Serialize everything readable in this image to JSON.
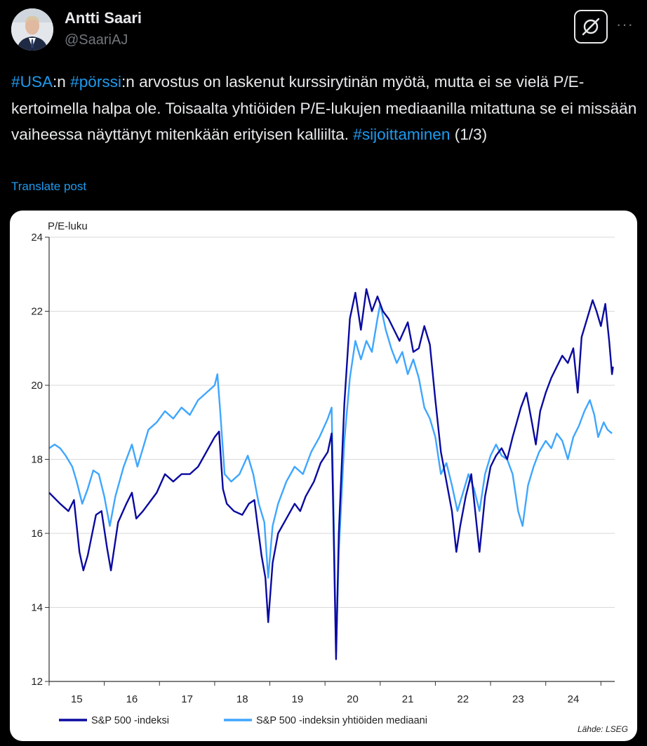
{
  "author": {
    "display_name": "Antti Saari",
    "handle": "@SaariAJ"
  },
  "header_actions": {
    "grok_icon": "grok-icon",
    "more_icon": "more-horizontal-icon",
    "more_label": "···"
  },
  "post": {
    "segments": [
      {
        "text": "#USA",
        "hashtag": true
      },
      {
        "text": ":n ",
        "hashtag": false
      },
      {
        "text": "#pörssi",
        "hashtag": true
      },
      {
        "text": ":n arvostus on laskenut kurssirytinän myötä, mutta ei se vielä P/E-kertoimella halpa ole. Toisaalta yhtiöiden P/E-lukujen mediaanilla mitattuna se ei missään vaiheessa näyttänyt mitenkään erityisen kalliilta. ",
        "hashtag": false
      },
      {
        "text": "#sijoittaminen",
        "hashtag": true
      },
      {
        "text": " (1/3)",
        "hashtag": false
      }
    ],
    "translate_label": "Translate post"
  },
  "colors": {
    "background": "#000000",
    "text": "#e7e9ea",
    "muted": "#71767b",
    "link": "#1d9bf0",
    "series_index": "#0a0aa0",
    "series_median": "#3ea6ff"
  },
  "chart_data": {
    "type": "line",
    "ylabel": "P/E-luku",
    "ylim": [
      12,
      24
    ],
    "yticks": [
      12,
      14,
      16,
      18,
      20,
      22,
      24
    ],
    "grid": true,
    "xlim": [
      2015.0,
      2025.25
    ],
    "xticks": [
      {
        "label": "15",
        "year": 2015
      },
      {
        "label": "16",
        "year": 2016
      },
      {
        "label": "17",
        "year": 2017
      },
      {
        "label": "18",
        "year": 2018
      },
      {
        "label": "19",
        "year": 2019
      },
      {
        "label": "20",
        "year": 2020
      },
      {
        "label": "21",
        "year": 2021
      },
      {
        "label": "22",
        "year": 2022
      },
      {
        "label": "23",
        "year": 2023
      },
      {
        "label": "24",
        "year": 2024
      }
    ],
    "legend_position": "bottom",
    "source": "Lähde: LSEG",
    "series": [
      {
        "name": "S&P 500 -indeksi",
        "color": "#0a0aa0",
        "points": [
          [
            2015.0,
            17.1
          ],
          [
            2015.2,
            16.8
          ],
          [
            2015.35,
            16.6
          ],
          [
            2015.45,
            16.9
          ],
          [
            2015.55,
            15.5
          ],
          [
            2015.62,
            15.0
          ],
          [
            2015.7,
            15.4
          ],
          [
            2015.85,
            16.5
          ],
          [
            2015.95,
            16.6
          ],
          [
            2016.05,
            15.6
          ],
          [
            2016.12,
            15.0
          ],
          [
            2016.25,
            16.3
          ],
          [
            2016.4,
            16.8
          ],
          [
            2016.5,
            17.1
          ],
          [
            2016.58,
            16.4
          ],
          [
            2016.7,
            16.6
          ],
          [
            2016.85,
            16.9
          ],
          [
            2016.95,
            17.1
          ],
          [
            2017.1,
            17.6
          ],
          [
            2017.25,
            17.4
          ],
          [
            2017.4,
            17.6
          ],
          [
            2017.55,
            17.6
          ],
          [
            2017.7,
            17.8
          ],
          [
            2017.85,
            18.2
          ],
          [
            2018.0,
            18.6
          ],
          [
            2018.08,
            18.75
          ],
          [
            2018.15,
            17.2
          ],
          [
            2018.22,
            16.8
          ],
          [
            2018.35,
            16.6
          ],
          [
            2018.5,
            16.5
          ],
          [
            2018.62,
            16.8
          ],
          [
            2018.72,
            16.9
          ],
          [
            2018.78,
            16.2
          ],
          [
            2018.85,
            15.4
          ],
          [
            2018.92,
            14.8
          ],
          [
            2018.97,
            13.6
          ],
          [
            2019.05,
            15.2
          ],
          [
            2019.15,
            16.0
          ],
          [
            2019.3,
            16.4
          ],
          [
            2019.45,
            16.8
          ],
          [
            2019.55,
            16.6
          ],
          [
            2019.65,
            17.0
          ],
          [
            2019.8,
            17.4
          ],
          [
            2019.92,
            17.9
          ],
          [
            2020.05,
            18.2
          ],
          [
            2020.12,
            18.7
          ],
          [
            2020.15,
            16.5
          ],
          [
            2020.2,
            12.6
          ],
          [
            2020.25,
            16.0
          ],
          [
            2020.35,
            19.5
          ],
          [
            2020.45,
            21.8
          ],
          [
            2020.55,
            22.5
          ],
          [
            2020.65,
            21.5
          ],
          [
            2020.75,
            22.6
          ],
          [
            2020.85,
            22.0
          ],
          [
            2020.95,
            22.4
          ],
          [
            2021.05,
            22.0
          ],
          [
            2021.15,
            21.8
          ],
          [
            2021.25,
            21.5
          ],
          [
            2021.35,
            21.2
          ],
          [
            2021.5,
            21.7
          ],
          [
            2021.6,
            20.9
          ],
          [
            2021.7,
            21.0
          ],
          [
            2021.8,
            21.6
          ],
          [
            2021.9,
            21.1
          ],
          [
            2022.0,
            19.6
          ],
          [
            2022.1,
            18.2
          ],
          [
            2022.2,
            17.4
          ],
          [
            2022.3,
            16.6
          ],
          [
            2022.38,
            15.5
          ],
          [
            2022.45,
            16.2
          ],
          [
            2022.55,
            17.0
          ],
          [
            2022.65,
            17.6
          ],
          [
            2022.75,
            16.2
          ],
          [
            2022.8,
            15.5
          ],
          [
            2022.9,
            17.0
          ],
          [
            2023.0,
            17.8
          ],
          [
            2023.1,
            18.1
          ],
          [
            2023.2,
            18.3
          ],
          [
            2023.3,
            18.0
          ],
          [
            2023.4,
            18.6
          ],
          [
            2023.55,
            19.4
          ],
          [
            2023.65,
            19.8
          ],
          [
            2023.75,
            19.0
          ],
          [
            2023.82,
            18.4
          ],
          [
            2023.9,
            19.3
          ],
          [
            2024.0,
            19.8
          ],
          [
            2024.1,
            20.2
          ],
          [
            2024.2,
            20.5
          ],
          [
            2024.3,
            20.8
          ],
          [
            2024.4,
            20.6
          ],
          [
            2024.5,
            21.0
          ],
          [
            2024.58,
            19.8
          ],
          [
            2024.65,
            21.3
          ],
          [
            2024.75,
            21.8
          ],
          [
            2024.85,
            22.3
          ],
          [
            2024.92,
            22.0
          ],
          [
            2025.0,
            21.6
          ],
          [
            2025.08,
            22.2
          ],
          [
            2025.15,
            21.2
          ],
          [
            2025.2,
            20.3
          ],
          [
            2025.22,
            20.5
          ]
        ]
      },
      {
        "name": "S&P 500 -indeksin yhtiöiden mediaani",
        "color": "#3ea6ff",
        "points": [
          [
            2015.0,
            18.3
          ],
          [
            2015.1,
            18.4
          ],
          [
            2015.2,
            18.3
          ],
          [
            2015.3,
            18.1
          ],
          [
            2015.42,
            17.8
          ],
          [
            2015.5,
            17.4
          ],
          [
            2015.6,
            16.8
          ],
          [
            2015.7,
            17.2
          ],
          [
            2015.8,
            17.7
          ],
          [
            2015.9,
            17.6
          ],
          [
            2016.0,
            17.0
          ],
          [
            2016.1,
            16.2
          ],
          [
            2016.2,
            17.0
          ],
          [
            2016.35,
            17.8
          ],
          [
            2016.5,
            18.4
          ],
          [
            2016.6,
            17.8
          ],
          [
            2016.7,
            18.3
          ],
          [
            2016.8,
            18.8
          ],
          [
            2016.95,
            19.0
          ],
          [
            2017.1,
            19.3
          ],
          [
            2017.25,
            19.1
          ],
          [
            2017.4,
            19.4
          ],
          [
            2017.55,
            19.2
          ],
          [
            2017.7,
            19.6
          ],
          [
            2017.85,
            19.8
          ],
          [
            2018.0,
            20.0
          ],
          [
            2018.05,
            20.3
          ],
          [
            2018.1,
            19.3
          ],
          [
            2018.18,
            17.6
          ],
          [
            2018.3,
            17.4
          ],
          [
            2018.45,
            17.6
          ],
          [
            2018.6,
            18.1
          ],
          [
            2018.7,
            17.6
          ],
          [
            2018.8,
            16.8
          ],
          [
            2018.9,
            16.3
          ],
          [
            2018.97,
            14.8
          ],
          [
            2019.05,
            16.2
          ],
          [
            2019.15,
            16.8
          ],
          [
            2019.3,
            17.4
          ],
          [
            2019.45,
            17.8
          ],
          [
            2019.6,
            17.6
          ],
          [
            2019.75,
            18.2
          ],
          [
            2019.9,
            18.6
          ],
          [
            2020.05,
            19.1
          ],
          [
            2020.12,
            19.4
          ],
          [
            2020.15,
            17.0
          ],
          [
            2020.2,
            12.8
          ],
          [
            2020.25,
            15.5
          ],
          [
            2020.35,
            18.5
          ],
          [
            2020.45,
            20.2
          ],
          [
            2020.55,
            21.2
          ],
          [
            2020.65,
            20.7
          ],
          [
            2020.75,
            21.2
          ],
          [
            2020.85,
            20.9
          ],
          [
            2020.95,
            21.8
          ],
          [
            2021.0,
            22.2
          ],
          [
            2021.1,
            21.5
          ],
          [
            2021.2,
            21.0
          ],
          [
            2021.3,
            20.6
          ],
          [
            2021.4,
            20.9
          ],
          [
            2021.5,
            20.3
          ],
          [
            2021.6,
            20.7
          ],
          [
            2021.7,
            20.2
          ],
          [
            2021.8,
            19.4
          ],
          [
            2021.9,
            19.1
          ],
          [
            2022.0,
            18.6
          ],
          [
            2022.1,
            17.6
          ],
          [
            2022.2,
            17.9
          ],
          [
            2022.3,
            17.3
          ],
          [
            2022.4,
            16.6
          ],
          [
            2022.5,
            17.1
          ],
          [
            2022.6,
            17.6
          ],
          [
            2022.7,
            17.2
          ],
          [
            2022.8,
            16.6
          ],
          [
            2022.9,
            17.6
          ],
          [
            2023.0,
            18.1
          ],
          [
            2023.1,
            18.4
          ],
          [
            2023.2,
            18.1
          ],
          [
            2023.3,
            18.0
          ],
          [
            2023.4,
            17.6
          ],
          [
            2023.5,
            16.6
          ],
          [
            2023.58,
            16.2
          ],
          [
            2023.68,
            17.3
          ],
          [
            2023.78,
            17.8
          ],
          [
            2023.88,
            18.2
          ],
          [
            2024.0,
            18.5
          ],
          [
            2024.1,
            18.3
          ],
          [
            2024.2,
            18.7
          ],
          [
            2024.3,
            18.5
          ],
          [
            2024.4,
            18.0
          ],
          [
            2024.5,
            18.6
          ],
          [
            2024.6,
            18.9
          ],
          [
            2024.7,
            19.3
          ],
          [
            2024.8,
            19.6
          ],
          [
            2024.88,
            19.2
          ],
          [
            2024.95,
            18.6
          ],
          [
            2025.05,
            19.0
          ],
          [
            2025.12,
            18.8
          ],
          [
            2025.2,
            18.7
          ]
        ]
      }
    ]
  }
}
